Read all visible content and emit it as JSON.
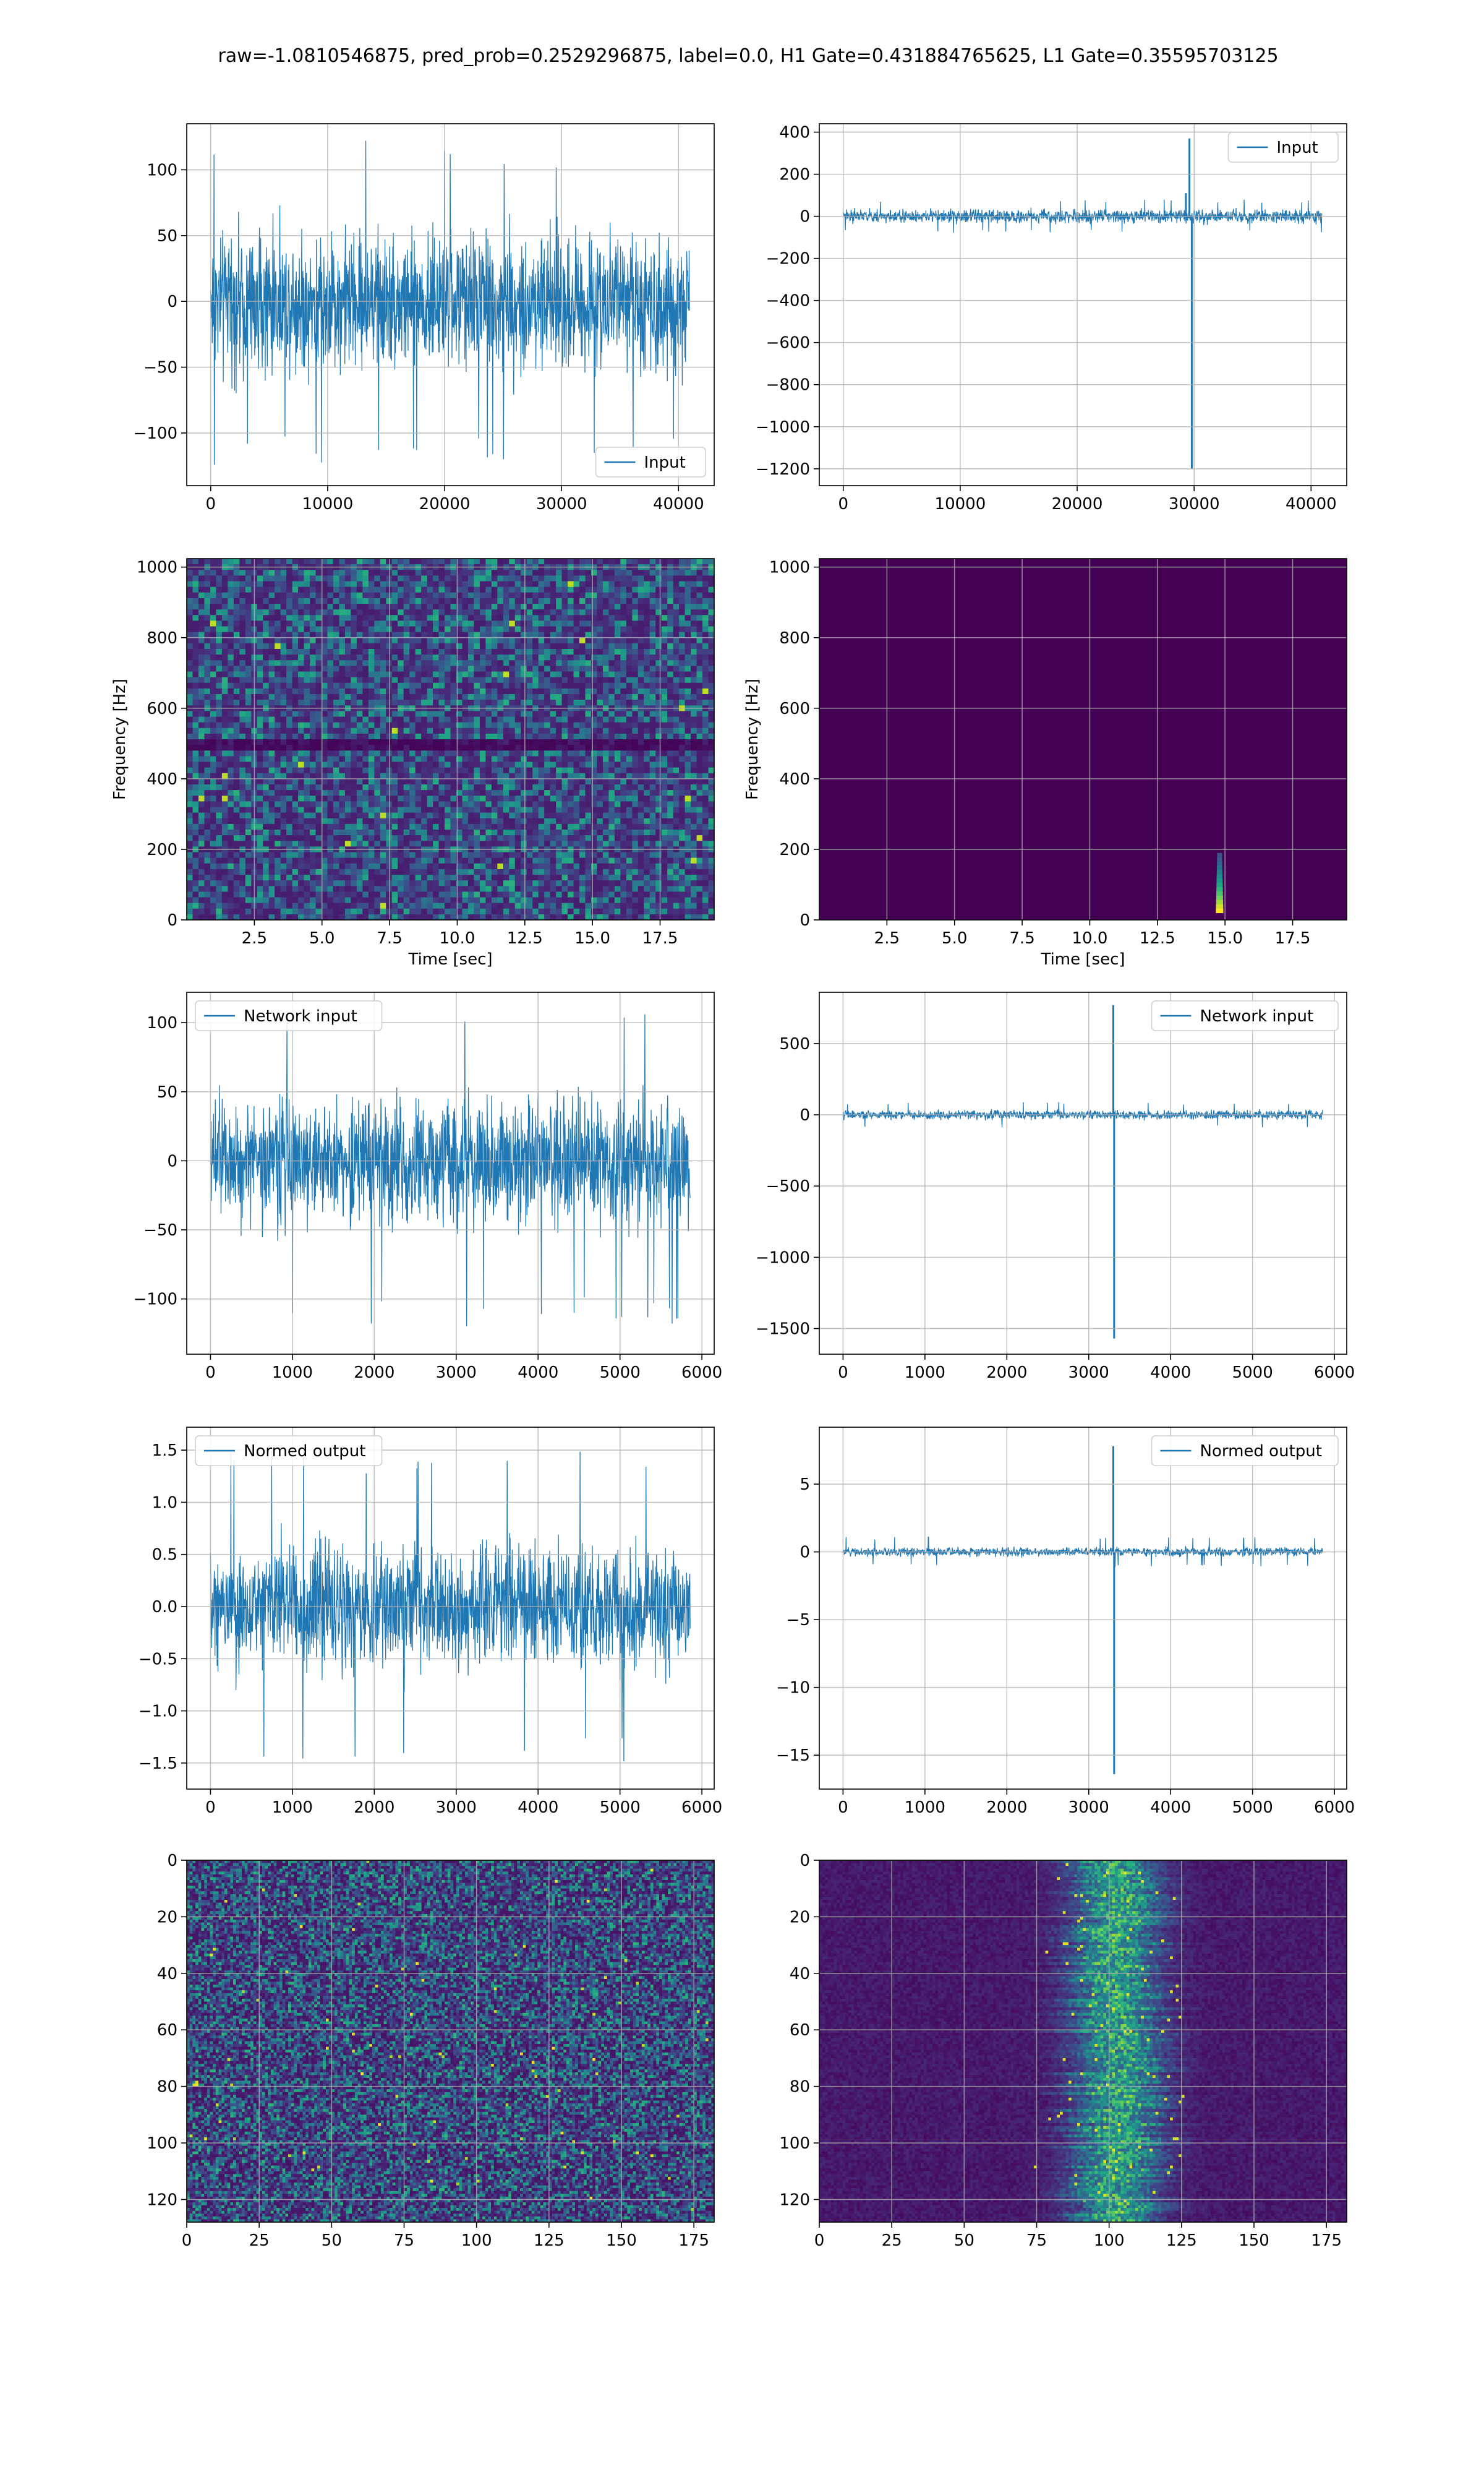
{
  "figure": {
    "suptitle": "raw=-1.0810546875, pred_prob=0.2529296875, label=0.0, H1 Gate=0.431884765625, L1 Gate=0.35595703125"
  },
  "colors": {
    "line": "#1f77b4",
    "grid": "#b0b0b0",
    "viridis": [
      "#440154",
      "#482475",
      "#414487",
      "#355f8d",
      "#2a788e",
      "#21918c",
      "#22a884",
      "#44bf70",
      "#7ad151",
      "#bddf26",
      "#fde725"
    ]
  },
  "chart_data": [
    {
      "id": "h1-input",
      "type": "line",
      "title": "",
      "xlabel": "",
      "ylabel": "",
      "xlim": [
        -2050,
        43050
      ],
      "ylim": [
        -140,
        135
      ],
      "xticks": [
        0,
        10000,
        20000,
        30000,
        40000
      ],
      "xticklabels": [
        "0",
        "10000",
        "20000",
        "30000",
        "40000"
      ],
      "yticks": [
        -100,
        -50,
        0,
        50,
        100
      ],
      "yticklabels": [
        "−100",
        "−50",
        "0",
        "50",
        "100"
      ],
      "grid": true,
      "legend": {
        "placement": "lower right",
        "entries": [
          "Input"
        ]
      },
      "series": [
        {
          "name": "Input",
          "n": 40960,
          "envelope": "noise",
          "amplitude": 75,
          "peak": 125,
          "spikes": []
        }
      ]
    },
    {
      "id": "l1-input",
      "type": "line",
      "title": "",
      "xlabel": "",
      "ylabel": "",
      "xlim": [
        -2050,
        43050
      ],
      "ylim": [
        -1280,
        440
      ],
      "xticks": [
        0,
        10000,
        20000,
        30000,
        40000
      ],
      "xticklabels": [
        "0",
        "10000",
        "20000",
        "30000",
        "40000"
      ],
      "yticks": [
        -1200,
        -1000,
        -800,
        -600,
        -400,
        -200,
        0,
        200,
        400
      ],
      "yticklabels": [
        "−1200",
        "−1000",
        "−800",
        "−600",
        "−400",
        "−200",
        "0",
        "200",
        "400"
      ],
      "grid": true,
      "legend": {
        "placement": "upper right",
        "entries": [
          "Input"
        ]
      },
      "series": [
        {
          "name": "Input",
          "n": 40960,
          "envelope": "noise",
          "amplitude": 45,
          "peak": 80,
          "spikes": [
            {
              "x": 29600,
              "y": 370
            },
            {
              "x": 29800,
              "y": -1200
            },
            {
              "x": 29300,
              "y": 110
            }
          ]
        }
      ]
    },
    {
      "id": "h1-spectrogram",
      "type": "heatmap",
      "title": "",
      "xlabel": "Time [sec]",
      "ylabel": "Frequency [Hz]",
      "xlim": [
        0.0,
        19.5
      ],
      "ylim": [
        0,
        1024
      ],
      "xticks": [
        2.5,
        5.0,
        7.5,
        10.0,
        12.5,
        15.0,
        17.5
      ],
      "xticklabels": [
        "2.5",
        "5.0",
        "7.5",
        "10.0",
        "12.5",
        "15.0",
        "17.5"
      ],
      "yticks": [
        0,
        200,
        400,
        600,
        800,
        1000
      ],
      "yticklabels": [
        "0",
        "200",
        "400",
        "600",
        "800",
        "1000"
      ],
      "grid": true,
      "pattern": "noise",
      "dark_band_hz": 500,
      "hotspot": null
    },
    {
      "id": "l1-spectrogram",
      "type": "heatmap",
      "title": "",
      "xlabel": "Time [sec]",
      "ylabel": "Frequency [Hz]",
      "xlim": [
        0.0,
        19.5
      ],
      "ylim": [
        0,
        1024
      ],
      "xticks": [
        2.5,
        5.0,
        7.5,
        10.0,
        12.5,
        15.0,
        17.5
      ],
      "xticklabels": [
        "2.5",
        "5.0",
        "7.5",
        "10.0",
        "12.5",
        "15.0",
        "17.5"
      ],
      "yticks": [
        0,
        200,
        400,
        600,
        800,
        1000
      ],
      "yticklabels": [
        "0",
        "200",
        "400",
        "600",
        "800",
        "1000"
      ],
      "grid": true,
      "pattern": "blank",
      "dark_band_hz": null,
      "hotspot": {
        "t": 14.8,
        "f_min": 20,
        "f_max": 190
      }
    },
    {
      "id": "h1-network-input",
      "type": "line",
      "title": "",
      "xlabel": "",
      "ylabel": "",
      "xlim": [
        -290,
        6150
      ],
      "ylim": [
        -140,
        122
      ],
      "xticks": [
        0,
        1000,
        2000,
        3000,
        4000,
        5000,
        6000
      ],
      "xticklabels": [
        "0",
        "1000",
        "2000",
        "3000",
        "4000",
        "5000",
        "6000"
      ],
      "yticks": [
        -100,
        -50,
        0,
        50,
        100
      ],
      "yticklabels": [
        "−100",
        "−50",
        "0",
        "50",
        "100"
      ],
      "grid": true,
      "legend": {
        "placement": "upper left",
        "entries": [
          "Network input"
        ]
      },
      "series": [
        {
          "name": "Network input",
          "n": 5860,
          "envelope": "noise",
          "amplitude": 65,
          "peak": 120,
          "spikes": []
        }
      ]
    },
    {
      "id": "l1-network-input",
      "type": "line",
      "title": "",
      "xlabel": "",
      "ylabel": "",
      "xlim": [
        -290,
        6150
      ],
      "ylim": [
        -1680,
        860
      ],
      "xticks": [
        0,
        1000,
        2000,
        3000,
        4000,
        5000,
        6000
      ],
      "xticklabels": [
        "0",
        "1000",
        "2000",
        "3000",
        "4000",
        "5000",
        "6000"
      ],
      "yticks": [
        -1500,
        -1000,
        -500,
        0,
        500
      ],
      "yticklabels": [
        "−1500",
        "−1000",
        "−500",
        "0",
        "500"
      ],
      "grid": true,
      "legend": {
        "placement": "upper right",
        "entries": [
          "Network input"
        ]
      },
      "series": [
        {
          "name": "Network input",
          "n": 5860,
          "envelope": "noise",
          "amplitude": 45,
          "peak": 90,
          "spikes": [
            {
              "x": 3300,
              "y": 770
            },
            {
              "x": 3310,
              "y": -1570
            }
          ]
        }
      ]
    },
    {
      "id": "h1-normed-output",
      "type": "line",
      "title": "",
      "xlabel": "",
      "ylabel": "",
      "xlim": [
        -290,
        6150
      ],
      "ylim": [
        -1.75,
        1.72
      ],
      "xticks": [
        0,
        1000,
        2000,
        3000,
        4000,
        5000,
        6000
      ],
      "xticklabels": [
        "0",
        "1000",
        "2000",
        "3000",
        "4000",
        "5000",
        "6000"
      ],
      "yticks": [
        -1.5,
        -1.0,
        -0.5,
        0.0,
        0.5,
        1.0,
        1.5
      ],
      "yticklabels": [
        "−1.5",
        "−1.0",
        "−0.5",
        "0.0",
        "0.5",
        "1.0",
        "1.5"
      ],
      "grid": true,
      "legend": {
        "placement": "upper left",
        "entries": [
          "Normed output"
        ]
      },
      "series": [
        {
          "name": "Normed output",
          "n": 5860,
          "envelope": "noise",
          "amplitude": 0.85,
          "peak": 1.55,
          "spikes": []
        }
      ]
    },
    {
      "id": "l1-normed-output",
      "type": "line",
      "title": "",
      "xlabel": "",
      "ylabel": "",
      "xlim": [
        -290,
        6150
      ],
      "ylim": [
        -17.5,
        9.2
      ],
      "xticks": [
        0,
        1000,
        2000,
        3000,
        4000,
        5000,
        6000
      ],
      "xticklabels": [
        "0",
        "1000",
        "2000",
        "3000",
        "4000",
        "5000",
        "6000"
      ],
      "yticks": [
        -15,
        -10,
        -5,
        0,
        5
      ],
      "yticklabels": [
        "−15",
        "−10",
        "−5",
        "0",
        "5"
      ],
      "grid": true,
      "legend": {
        "placement": "upper right",
        "entries": [
          "Normed output"
        ]
      },
      "series": [
        {
          "name": "Normed output",
          "n": 5860,
          "envelope": "noise",
          "amplitude": 0.45,
          "peak": 1.1,
          "spikes": [
            {
              "x": 3300,
              "y": 7.8
            },
            {
              "x": 3310,
              "y": -16.4
            }
          ]
        }
      ]
    },
    {
      "id": "h1-feature-map",
      "type": "heatmap",
      "title": "",
      "xlabel": "",
      "ylabel": "",
      "xlim": [
        0,
        182
      ],
      "ylim": [
        128,
        0
      ],
      "xticks": [
        0,
        25,
        50,
        75,
        100,
        125,
        150,
        175
      ],
      "xticklabels": [
        "0",
        "25",
        "50",
        "75",
        "100",
        "125",
        "150",
        "175"
      ],
      "yticks": [
        0,
        20,
        40,
        60,
        80,
        100,
        120
      ],
      "yticklabels": [
        "0",
        "20",
        "40",
        "60",
        "80",
        "100",
        "120"
      ],
      "grid": true,
      "pattern": "noise",
      "band": null
    },
    {
      "id": "l1-feature-map",
      "type": "heatmap",
      "title": "",
      "xlabel": "",
      "ylabel": "",
      "xlim": [
        0,
        182
      ],
      "ylim": [
        128,
        0
      ],
      "xticks": [
        0,
        25,
        50,
        75,
        100,
        125,
        150,
        175
      ],
      "xticklabels": [
        "0",
        "25",
        "50",
        "75",
        "100",
        "125",
        "150",
        "175"
      ],
      "yticks": [
        0,
        20,
        40,
        60,
        80,
        100,
        120
      ],
      "yticklabels": [
        "0",
        "20",
        "40",
        "60",
        "80",
        "100",
        "120"
      ],
      "grid": true,
      "pattern": "band",
      "band": {
        "center": 102,
        "width": 18
      }
    }
  ]
}
